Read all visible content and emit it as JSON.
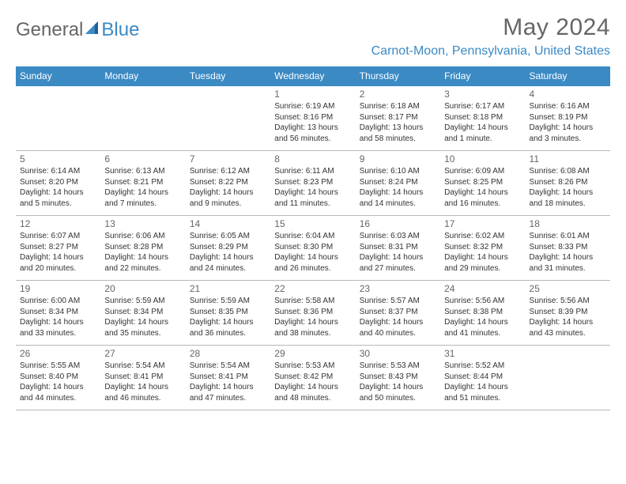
{
  "brand": {
    "part1": "General",
    "part2": "Blue"
  },
  "title": "May 2024",
  "location": "Carnot-Moon, Pennsylvania, United States",
  "colors": {
    "accent": "#3b8ac4",
    "header_text": "#ffffff",
    "title_color": "#666666",
    "body_text": "#333333",
    "row_divider": "#b8b8b8",
    "background": "#ffffff"
  },
  "dayHeaders": [
    "Sunday",
    "Monday",
    "Tuesday",
    "Wednesday",
    "Thursday",
    "Friday",
    "Saturday"
  ],
  "weeks": [
    [
      null,
      null,
      null,
      {
        "n": "1",
        "sr": "Sunrise: 6:19 AM",
        "ss": "Sunset: 8:16 PM",
        "dl": "Daylight: 13 hours and 56 minutes."
      },
      {
        "n": "2",
        "sr": "Sunrise: 6:18 AM",
        "ss": "Sunset: 8:17 PM",
        "dl": "Daylight: 13 hours and 58 minutes."
      },
      {
        "n": "3",
        "sr": "Sunrise: 6:17 AM",
        "ss": "Sunset: 8:18 PM",
        "dl": "Daylight: 14 hours and 1 minute."
      },
      {
        "n": "4",
        "sr": "Sunrise: 6:16 AM",
        "ss": "Sunset: 8:19 PM",
        "dl": "Daylight: 14 hours and 3 minutes."
      }
    ],
    [
      {
        "n": "5",
        "sr": "Sunrise: 6:14 AM",
        "ss": "Sunset: 8:20 PM",
        "dl": "Daylight: 14 hours and 5 minutes."
      },
      {
        "n": "6",
        "sr": "Sunrise: 6:13 AM",
        "ss": "Sunset: 8:21 PM",
        "dl": "Daylight: 14 hours and 7 minutes."
      },
      {
        "n": "7",
        "sr": "Sunrise: 6:12 AM",
        "ss": "Sunset: 8:22 PM",
        "dl": "Daylight: 14 hours and 9 minutes."
      },
      {
        "n": "8",
        "sr": "Sunrise: 6:11 AM",
        "ss": "Sunset: 8:23 PM",
        "dl": "Daylight: 14 hours and 11 minutes."
      },
      {
        "n": "9",
        "sr": "Sunrise: 6:10 AM",
        "ss": "Sunset: 8:24 PM",
        "dl": "Daylight: 14 hours and 14 minutes."
      },
      {
        "n": "10",
        "sr": "Sunrise: 6:09 AM",
        "ss": "Sunset: 8:25 PM",
        "dl": "Daylight: 14 hours and 16 minutes."
      },
      {
        "n": "11",
        "sr": "Sunrise: 6:08 AM",
        "ss": "Sunset: 8:26 PM",
        "dl": "Daylight: 14 hours and 18 minutes."
      }
    ],
    [
      {
        "n": "12",
        "sr": "Sunrise: 6:07 AM",
        "ss": "Sunset: 8:27 PM",
        "dl": "Daylight: 14 hours and 20 minutes."
      },
      {
        "n": "13",
        "sr": "Sunrise: 6:06 AM",
        "ss": "Sunset: 8:28 PM",
        "dl": "Daylight: 14 hours and 22 minutes."
      },
      {
        "n": "14",
        "sr": "Sunrise: 6:05 AM",
        "ss": "Sunset: 8:29 PM",
        "dl": "Daylight: 14 hours and 24 minutes."
      },
      {
        "n": "15",
        "sr": "Sunrise: 6:04 AM",
        "ss": "Sunset: 8:30 PM",
        "dl": "Daylight: 14 hours and 26 minutes."
      },
      {
        "n": "16",
        "sr": "Sunrise: 6:03 AM",
        "ss": "Sunset: 8:31 PM",
        "dl": "Daylight: 14 hours and 27 minutes."
      },
      {
        "n": "17",
        "sr": "Sunrise: 6:02 AM",
        "ss": "Sunset: 8:32 PM",
        "dl": "Daylight: 14 hours and 29 minutes."
      },
      {
        "n": "18",
        "sr": "Sunrise: 6:01 AM",
        "ss": "Sunset: 8:33 PM",
        "dl": "Daylight: 14 hours and 31 minutes."
      }
    ],
    [
      {
        "n": "19",
        "sr": "Sunrise: 6:00 AM",
        "ss": "Sunset: 8:34 PM",
        "dl": "Daylight: 14 hours and 33 minutes."
      },
      {
        "n": "20",
        "sr": "Sunrise: 5:59 AM",
        "ss": "Sunset: 8:34 PM",
        "dl": "Daylight: 14 hours and 35 minutes."
      },
      {
        "n": "21",
        "sr": "Sunrise: 5:59 AM",
        "ss": "Sunset: 8:35 PM",
        "dl": "Daylight: 14 hours and 36 minutes."
      },
      {
        "n": "22",
        "sr": "Sunrise: 5:58 AM",
        "ss": "Sunset: 8:36 PM",
        "dl": "Daylight: 14 hours and 38 minutes."
      },
      {
        "n": "23",
        "sr": "Sunrise: 5:57 AM",
        "ss": "Sunset: 8:37 PM",
        "dl": "Daylight: 14 hours and 40 minutes."
      },
      {
        "n": "24",
        "sr": "Sunrise: 5:56 AM",
        "ss": "Sunset: 8:38 PM",
        "dl": "Daylight: 14 hours and 41 minutes."
      },
      {
        "n": "25",
        "sr": "Sunrise: 5:56 AM",
        "ss": "Sunset: 8:39 PM",
        "dl": "Daylight: 14 hours and 43 minutes."
      }
    ],
    [
      {
        "n": "26",
        "sr": "Sunrise: 5:55 AM",
        "ss": "Sunset: 8:40 PM",
        "dl": "Daylight: 14 hours and 44 minutes."
      },
      {
        "n": "27",
        "sr": "Sunrise: 5:54 AM",
        "ss": "Sunset: 8:41 PM",
        "dl": "Daylight: 14 hours and 46 minutes."
      },
      {
        "n": "28",
        "sr": "Sunrise: 5:54 AM",
        "ss": "Sunset: 8:41 PM",
        "dl": "Daylight: 14 hours and 47 minutes."
      },
      {
        "n": "29",
        "sr": "Sunrise: 5:53 AM",
        "ss": "Sunset: 8:42 PM",
        "dl": "Daylight: 14 hours and 48 minutes."
      },
      {
        "n": "30",
        "sr": "Sunrise: 5:53 AM",
        "ss": "Sunset: 8:43 PM",
        "dl": "Daylight: 14 hours and 50 minutes."
      },
      {
        "n": "31",
        "sr": "Sunrise: 5:52 AM",
        "ss": "Sunset: 8:44 PM",
        "dl": "Daylight: 14 hours and 51 minutes."
      },
      null
    ]
  ]
}
